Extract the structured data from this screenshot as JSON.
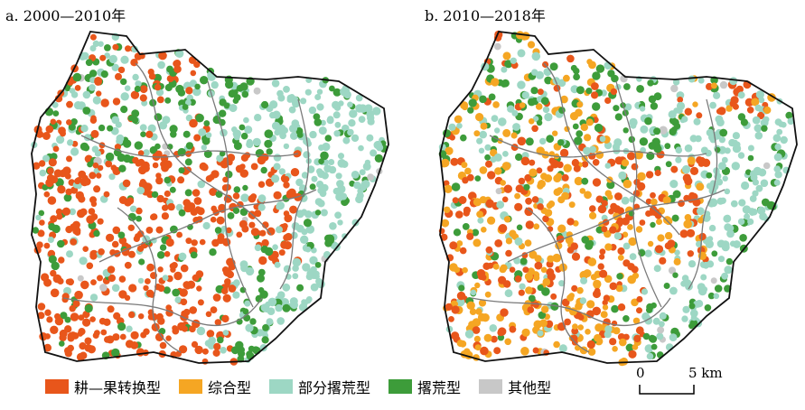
{
  "panels": [
    {
      "id": "a",
      "title": "a. 2000—2010年"
    },
    {
      "id": "b",
      "title": "b. 2010—2018年"
    }
  ],
  "legend": [
    {
      "label": "耕—果转换型",
      "color": "#e8561b"
    },
    {
      "label": "综合型",
      "color": "#f5a623"
    },
    {
      "label": "部分撂荒型",
      "color": "#9dd7c4"
    },
    {
      "label": "撂荒型",
      "color": "#3d9c3a"
    },
    {
      "label": "其他型",
      "color": "#c8c8c8"
    }
  ],
  "scale_bar": {
    "start": "0",
    "end": "5 km"
  }
}
